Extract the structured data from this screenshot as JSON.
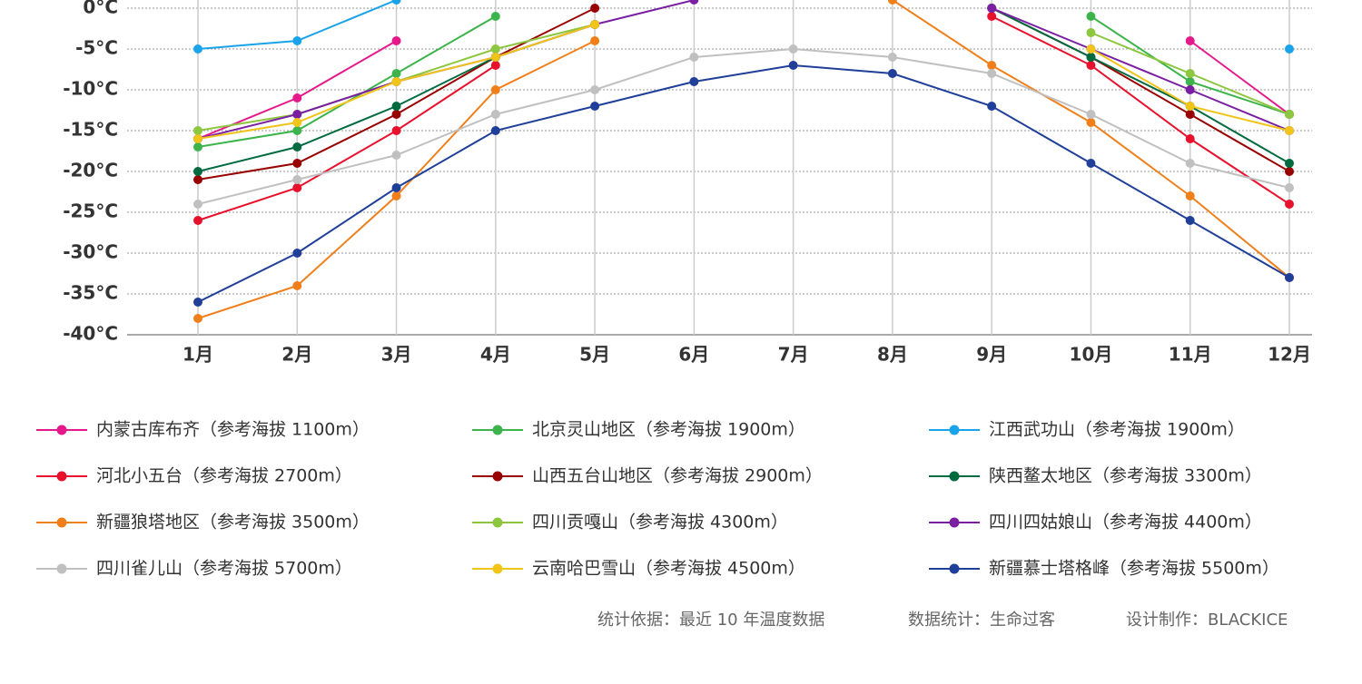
{
  "chart_data": {
    "type": "line",
    "categories": [
      "1月",
      "2月",
      "3月",
      "4月",
      "5月",
      "6月",
      "7月",
      "8月",
      "9月",
      "10月",
      "11月",
      "12月"
    ],
    "ylim": [
      -40,
      1
    ],
    "yticks": [
      {
        "value": 0,
        "label": "0°C"
      },
      {
        "value": -5,
        "label": "-5°C"
      },
      {
        "value": -10,
        "label": "-10°C"
      },
      {
        "value": -15,
        "label": "-15°C"
      },
      {
        "value": -20,
        "label": "-20°C"
      },
      {
        "value": -25,
        "label": "-25°C"
      },
      {
        "value": -30,
        "label": "-30°C"
      },
      {
        "value": -35,
        "label": "-35°C"
      },
      {
        "value": -40,
        "label": "-40°C"
      }
    ],
    "grid": true,
    "series": [
      {
        "name": "内蒙古库布齐（参考海拔 1100m）",
        "color": "#e6198a",
        "values": [
          -16,
          -11,
          -4,
          null,
          null,
          null,
          null,
          null,
          null,
          null,
          -4,
          -13
        ]
      },
      {
        "name": "北京灵山地区（参考海拔 1900m）",
        "color": "#3cb44b",
        "values": [
          -17,
          -15,
          -8,
          -1,
          null,
          null,
          null,
          null,
          null,
          -1,
          -9,
          -13
        ]
      },
      {
        "name": "江西武功山（参考海拔 1900m）",
        "color": "#1aa3e8",
        "values": [
          -5,
          -4,
          1,
          null,
          null,
          null,
          null,
          null,
          null,
          null,
          null,
          -5
        ]
      },
      {
        "name": "河北小五台（参考海拔 2700m）",
        "color": "#e8112d",
        "values": [
          -26,
          -22,
          -15,
          -7,
          null,
          null,
          null,
          null,
          -1,
          -7,
          -16,
          -24
        ]
      },
      {
        "name": "山西五台山地区（参考海拔 2900m）",
        "color": "#990000",
        "values": [
          -21,
          -19,
          -13,
          -6,
          0,
          null,
          null,
          null,
          0,
          -6,
          -13,
          -20
        ]
      },
      {
        "name": "陕西鳌太地区（参考海拔 3300m）",
        "color": "#006b3f",
        "values": [
          -20,
          -17,
          -12,
          -6,
          -2,
          null,
          null,
          null,
          0,
          -6,
          -12,
          -19
        ]
      },
      {
        "name": "新疆狼塔地区（参考海拔 3500m）",
        "color": "#f07f1a",
        "values": [
          -38,
          -34,
          -23,
          -10,
          -4,
          null,
          null,
          1,
          -7,
          -14,
          -23,
          -33
        ]
      },
      {
        "name": "四川贡嘎山（参考海拔 4300m）",
        "color": "#8dc63f",
        "values": [
          -15,
          -13,
          -9,
          -5,
          -2,
          null,
          null,
          null,
          null,
          -3,
          -8,
          -13
        ]
      },
      {
        "name": "四川四姑娘山（参考海拔 4400m）",
        "color": "#7b1fa2",
        "values": [
          -16,
          -13,
          -9,
          -6,
          -2,
          1,
          null,
          null,
          0,
          -5,
          -10,
          -15
        ]
      },
      {
        "name": "四川雀儿山（参考海拔 5700m）",
        "color": "#c0c0c0",
        "values": [
          -24,
          -21,
          -18,
          -13,
          -10,
          -6,
          -5,
          -6,
          -8,
          -13,
          -19,
          -22
        ]
      },
      {
        "name": "云南哈巴雪山（参考海拔 4500m）",
        "color": "#f0c419",
        "values": [
          -16,
          -14,
          -9,
          -6,
          -2,
          null,
          null,
          null,
          null,
          -5,
          -12,
          -15
        ]
      },
      {
        "name": "新疆慕士塔格峰（参考海拔 5500m）",
        "color": "#1f3f99",
        "values": [
          -36,
          -30,
          -22,
          -15,
          -12,
          -9,
          -7,
          -8,
          -12,
          -19,
          -26,
          -33
        ]
      }
    ]
  },
  "footer": [
    "统计依据：最近 10 年温度数据",
    "数据统计：生命过客",
    "设计制作：BLACKICE"
  ]
}
